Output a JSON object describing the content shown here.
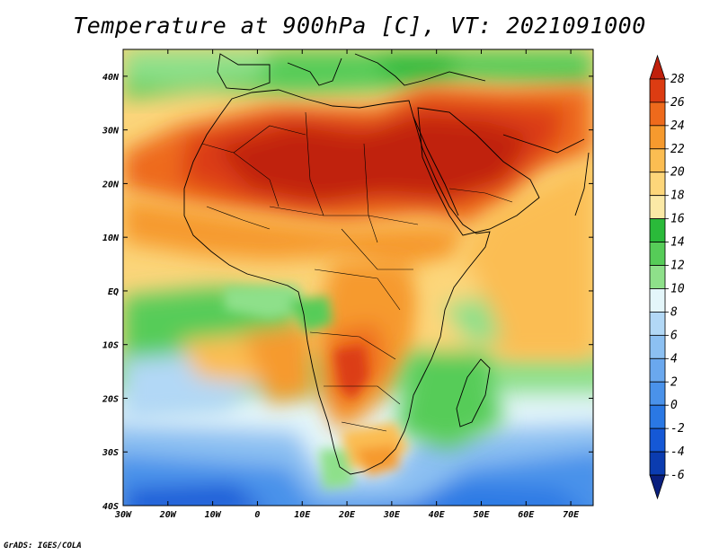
{
  "title": "Temperature at 900hPa [C], VT: 2021091000",
  "credit": "GrADS: IGES/COLA",
  "map": {
    "variable": "Temperature",
    "level_hpa": 900,
    "units": "C",
    "valid_time": "2021091000",
    "lon_range": [
      -30,
      75
    ],
    "lat_range": [
      -40,
      45
    ],
    "lon_ticks": [
      "30W",
      "20W",
      "10W",
      "0",
      "10E",
      "20E",
      "30E",
      "40E",
      "50E",
      "60E",
      "70E"
    ],
    "lat_ticks": [
      "40N",
      "30N",
      "20N",
      "10N",
      "EQ",
      "10S",
      "20S",
      "30S",
      "40S"
    ]
  },
  "colorbar": {
    "levels": [
      "-6",
      "-4",
      "-2",
      "0",
      "2",
      "4",
      "6",
      "8",
      "10",
      "12",
      "14",
      "16",
      "18",
      "20",
      "22",
      "24",
      "26",
      "28"
    ],
    "colors": [
      "#0a1f7e",
      "#0b3cb0",
      "#1558d6",
      "#2a78e4",
      "#4a92ea",
      "#6aa8ee",
      "#8cc0f2",
      "#b2d8f6",
      "#e4f6fa",
      "#8ee08a",
      "#56cc58",
      "#2aba3a",
      "#fbe9a6",
      "#fdd67a",
      "#fbbd52",
      "#f69a2e",
      "#ee6a1c",
      "#dc3c12",
      "#c0200c"
    ]
  }
}
